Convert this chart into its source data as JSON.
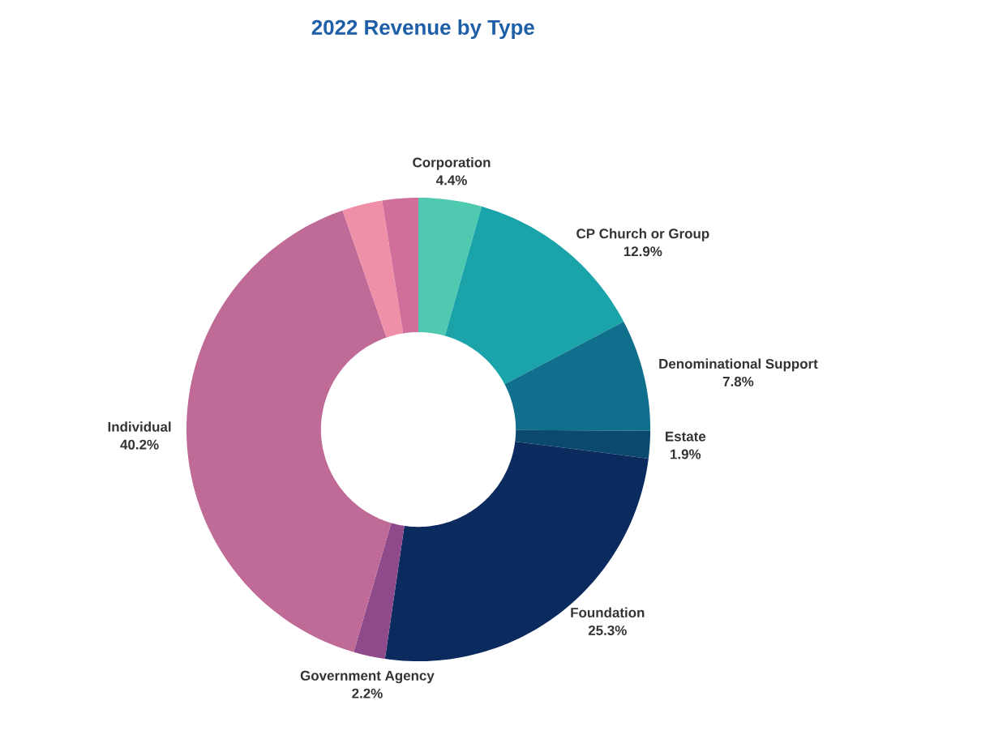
{
  "chart_data": {
    "type": "donut",
    "title": "2022 Revenue by Type",
    "categories": [
      "Corporation",
      "CP Church or Group",
      "Denominational Support",
      "Estate",
      "Foundation",
      "Government Agency",
      "Individual",
      null,
      null
    ],
    "values": [
      4.4,
      12.9,
      7.8,
      1.9,
      25.3,
      2.2,
      40.2,
      2.8,
      2.5
    ],
    "value_labels": [
      "4.4%",
      "12.9%",
      "7.8%",
      "1.9%",
      "25.3%",
      "2.2%",
      "40.2%",
      null,
      null
    ],
    "colors": [
      "#4fc9b0",
      "#1aa3a8",
      "#0f6f8c",
      "#0b4a6e",
      "#0b2a5e",
      "#8e4a8a",
      "#c06b97",
      "#f08fa8",
      "#d0709a"
    ]
  }
}
